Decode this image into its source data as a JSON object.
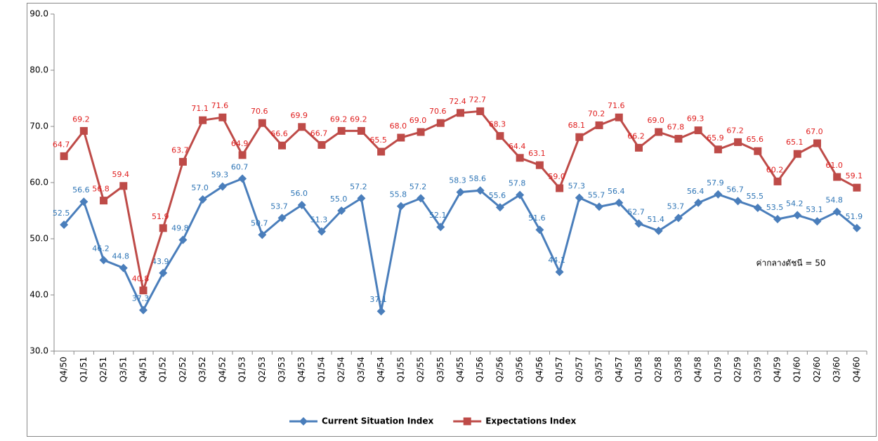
{
  "chart_data": {
    "type": "line",
    "categories": [
      "Q4/50",
      "Q1/51",
      "Q2/51",
      "Q3/51",
      "Q4/51",
      "Q1/52",
      "Q2/52",
      "Q3/52",
      "Q4/52",
      "Q1/53",
      "Q2/53",
      "Q3/53",
      "Q4/53",
      "Q1/54",
      "Q2/54",
      "Q3/54",
      "Q4/54",
      "Q1/55",
      "Q2/55",
      "Q3/55",
      "Q4/55",
      "Q1/56",
      "Q2/56",
      "Q3/56",
      "Q4/56",
      "Q1/57",
      "Q2/57",
      "Q3/57",
      "Q4/57",
      "Q1/58",
      "Q2/58",
      "Q3/58",
      "Q4/58",
      "Q1/59",
      "Q2/59",
      "Q3/59",
      "Q4/59",
      "Q1/60",
      "Q2/60",
      "Q3/60",
      "Q4/60"
    ],
    "series": [
      {
        "name": "Current Situation Index",
        "color": "#4a7ebb",
        "label_color": "#2e75b6",
        "marker": "diamond",
        "values": [
          52.5,
          56.6,
          46.2,
          44.8,
          37.3,
          43.9,
          49.8,
          57,
          59.3,
          60.7,
          50.7,
          53.7,
          56,
          51.3,
          55,
          57.2,
          37.1,
          55.8,
          57.2,
          52.1,
          58.3,
          58.6,
          55.6,
          57.8,
          51.6,
          44.1,
          57.3,
          55.7,
          56.4,
          52.7,
          51.4,
          53.7,
          56.4,
          57.9,
          56.7,
          55.5,
          53.5,
          54.2,
          53.1,
          54.8,
          51.9
        ],
        "value_labels": [
          "52.5",
          "56.6",
          "46.2",
          "44.8",
          "37.3",
          "43.9",
          "49.8",
          "57.0",
          "59.3",
          "60.7",
          "50.7",
          "53.7",
          "56.0",
          "51.3",
          "55.0",
          "57.2",
          "37.1",
          "55.8",
          "57.2",
          "52.1",
          "58.3",
          "58.6",
          "55.6",
          "57.8",
          "51.6",
          "44.1",
          "57.3",
          "55.7",
          "56.4",
          "52.7",
          "51.4",
          "53.7",
          "56.4",
          "57.9",
          "56.7",
          "55.5",
          "53.5",
          "54.2",
          "53.1",
          "54.8",
          "51.9"
        ]
      },
      {
        "name": "Expectations  Index",
        "color": "#be4b48",
        "label_color": "#e02020",
        "marker": "square",
        "values": [
          64.7,
          69.2,
          56.8,
          59.4,
          40.8,
          51.9,
          63.7,
          71.1,
          71.6,
          64.9,
          70.6,
          66.6,
          69.9,
          66.7,
          69.2,
          69.2,
          65.5,
          68,
          69,
          70.6,
          72.4,
          72.7,
          68.3,
          64.4,
          63.1,
          59,
          68.1,
          70.2,
          71.6,
          66.2,
          69,
          67.8,
          69.3,
          65.9,
          67.2,
          65.6,
          60.2,
          65.1,
          67,
          61,
          59.1
        ],
        "value_labels": [
          "64.7",
          "69.2",
          "56.8",
          "59.4",
          "40.8",
          "51.9",
          "63.7",
          "71.1",
          "71.6",
          "64.9",
          "70.6",
          "66.6",
          "69.9",
          "66.7",
          "69.2",
          "69.2",
          "65.5",
          "68.0",
          "69.0",
          "70.6",
          "72.4",
          "72.7",
          "68.3",
          "64.4",
          "63.1",
          "59.0",
          "68.1",
          "70.2",
          "71.6",
          "66.2",
          "69.0",
          "67.8",
          "69.3",
          "65.9",
          "67.2",
          "65.6",
          "60.2",
          "65.1",
          "67.0",
          "61.0",
          "59.1"
        ]
      }
    ],
    "ylim": [
      30,
      90
    ],
    "yticks": [
      {
        "value": 30,
        "label": "30.0"
      },
      {
        "value": 40,
        "label": "40.0"
      },
      {
        "value": 50,
        "label": "50.0"
      },
      {
        "value": 60,
        "label": "60.0"
      },
      {
        "value": 70,
        "label": "70.0"
      },
      {
        "value": 80,
        "label": "80.0"
      },
      {
        "value": 90,
        "label": "90.0"
      }
    ],
    "annotation": "ค่ากลางดัชนี = 50",
    "legend": "bottom"
  }
}
